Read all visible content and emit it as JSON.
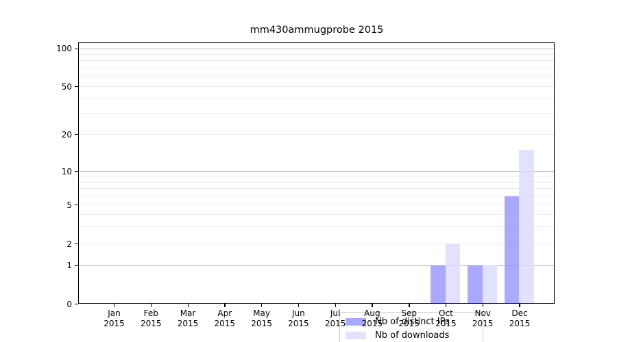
{
  "chart_data": {
    "type": "bar",
    "title": "mm430ammugprobe 2015",
    "xlabel": "",
    "ylabel": "",
    "categories": [
      "Jan",
      "Feb",
      "Mar",
      "Apr",
      "May",
      "Jun",
      "Jul",
      "Aug",
      "Sep",
      "Oct",
      "Nov",
      "Dec"
    ],
    "xtick_year": "2015",
    "series": [
      {
        "name": "Nb of distinct IPs",
        "color": "rgba(136,136,255,0.72)",
        "values": [
          0,
          0,
          0,
          0,
          0,
          0,
          0,
          0,
          0,
          1,
          1,
          6
        ]
      },
      {
        "name": "Nb of downloads",
        "color": "rgba(221,221,255,0.85)",
        "values": [
          0,
          0,
          0,
          0,
          0,
          0,
          0,
          0,
          0,
          2,
          1,
          15
        ]
      }
    ],
    "yscale": "log (linear segment from 0 to 1)",
    "ylim": [
      0,
      112
    ],
    "yticks": [
      0,
      1,
      2,
      5,
      10,
      20,
      50,
      100
    ],
    "major_gridlines": [
      1,
      10,
      100
    ],
    "minor_gridlines": [
      2,
      3,
      4,
      5,
      6,
      7,
      8,
      9,
      20,
      30,
      40,
      50,
      60,
      70,
      80,
      90
    ],
    "grid": "on",
    "legend_position": "lower center, inside plot",
    "colors": {
      "bar_dark_on_white": "#acacfa",
      "bar_light_on_white": "#dcdcfb",
      "major_grid": "#b8b8b8",
      "minor_grid": "#ebebeb",
      "axis": "#000000"
    }
  }
}
